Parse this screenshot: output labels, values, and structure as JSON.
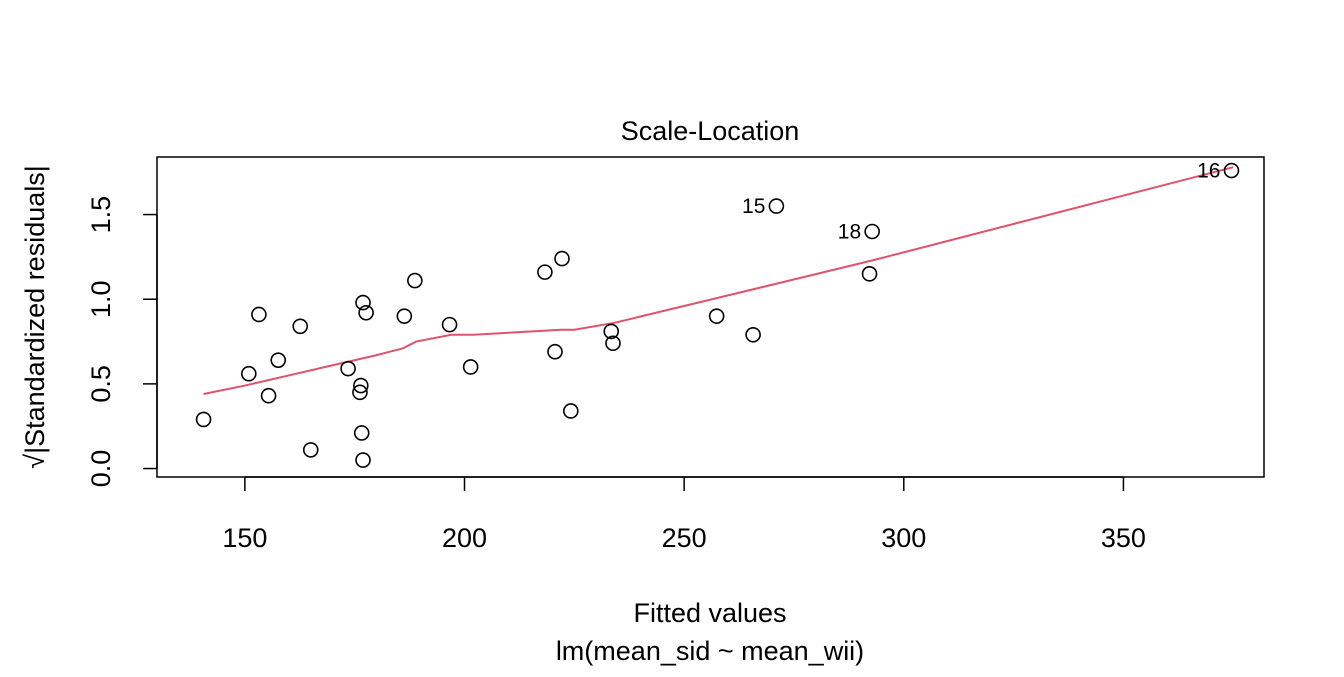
{
  "chart_data": {
    "type": "scatter",
    "title": "Scale-Location",
    "xlabel": "Fitted values",
    "sublabel": "lm(mean_sid ~ mean_wii)",
    "ylabel": "√|Standardized residuals|",
    "xlim": [
      130,
      382
    ],
    "ylim": [
      -0.05,
      1.84
    ],
    "xticks": [
      150,
      200,
      250,
      300,
      350
    ],
    "yticks": [
      0.0,
      0.5,
      1.0,
      1.5
    ],
    "xtick_labels": [
      "150",
      "200",
      "250",
      "300",
      "350"
    ],
    "ytick_labels": [
      "0.0",
      "0.5",
      "1.0",
      "1.5"
    ],
    "grid": false,
    "points": [
      {
        "x": 140.6,
        "y": 0.29,
        "label": ""
      },
      {
        "x": 150.9,
        "y": 0.56,
        "label": ""
      },
      {
        "x": 153.2,
        "y": 0.91,
        "label": ""
      },
      {
        "x": 155.4,
        "y": 0.43,
        "label": ""
      },
      {
        "x": 157.6,
        "y": 0.64,
        "label": ""
      },
      {
        "x": 162.6,
        "y": 0.84,
        "label": ""
      },
      {
        "x": 165.0,
        "y": 0.11,
        "label": ""
      },
      {
        "x": 173.5,
        "y": 0.59,
        "label": ""
      },
      {
        "x": 176.2,
        "y": 0.45,
        "label": ""
      },
      {
        "x": 176.4,
        "y": 0.49,
        "label": ""
      },
      {
        "x": 176.6,
        "y": 0.21,
        "label": ""
      },
      {
        "x": 176.9,
        "y": 0.98,
        "label": ""
      },
      {
        "x": 176.9,
        "y": 0.05,
        "label": ""
      },
      {
        "x": 177.6,
        "y": 0.92,
        "label": ""
      },
      {
        "x": 186.3,
        "y": 0.9,
        "label": ""
      },
      {
        "x": 188.7,
        "y": 1.11,
        "label": ""
      },
      {
        "x": 196.6,
        "y": 0.85,
        "label": ""
      },
      {
        "x": 201.4,
        "y": 0.6,
        "label": ""
      },
      {
        "x": 218.3,
        "y": 1.16,
        "label": ""
      },
      {
        "x": 220.6,
        "y": 0.69,
        "label": ""
      },
      {
        "x": 222.2,
        "y": 1.24,
        "label": ""
      },
      {
        "x": 224.2,
        "y": 0.34,
        "label": ""
      },
      {
        "x": 233.4,
        "y": 0.81,
        "label": ""
      },
      {
        "x": 233.8,
        "y": 0.74,
        "label": ""
      },
      {
        "x": 257.4,
        "y": 0.9,
        "label": ""
      },
      {
        "x": 265.7,
        "y": 0.79,
        "label": ""
      },
      {
        "x": 271.0,
        "y": 1.55,
        "label": "15"
      },
      {
        "x": 292.2,
        "y": 1.15,
        "label": ""
      },
      {
        "x": 292.8,
        "y": 1.4,
        "label": "18"
      },
      {
        "x": 374.6,
        "y": 1.76,
        "label": "16"
      }
    ],
    "smooth_line": {
      "color": "#DF536B",
      "x": [
        140.6,
        150.0,
        160.0,
        170.0,
        180.0,
        186.0,
        189.0,
        197.0,
        202.0,
        222.0,
        225.0,
        234.0,
        258.0,
        293.0,
        375.0
      ],
      "y": [
        0.44,
        0.49,
        0.55,
        0.61,
        0.67,
        0.71,
        0.75,
        0.79,
        0.79,
        0.82,
        0.82,
        0.86,
        1.01,
        1.23,
        1.78
      ]
    },
    "colors": {
      "points": "#000000",
      "axes": "#000000",
      "smooth": "#DF536B"
    }
  }
}
